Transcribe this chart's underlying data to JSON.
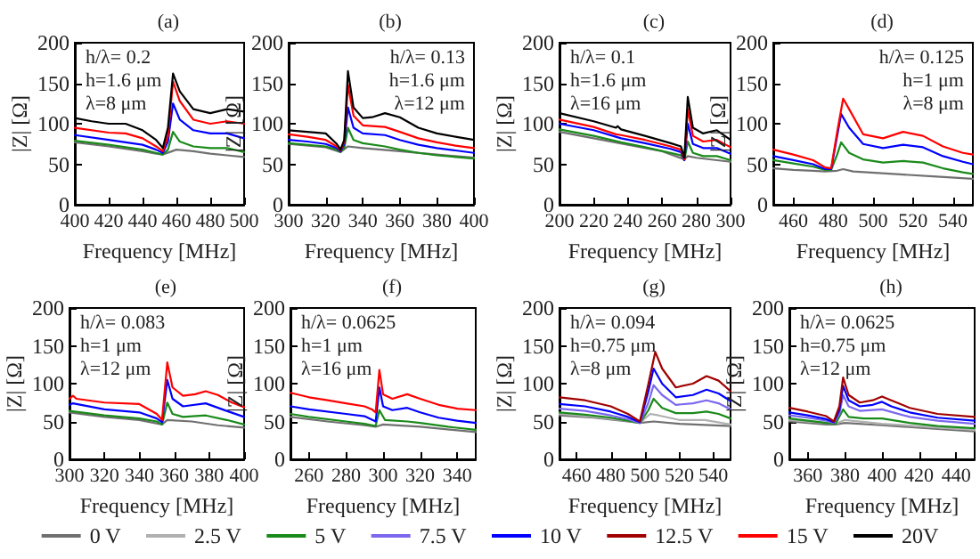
{
  "chart_data": [
    {
      "type": "line",
      "title": "(a)",
      "xlabel": "Frequency [MHz]",
      "ylabel": "|Z| [Ω]",
      "annotations": [
        "h/λ= 0.2",
        "h=1.6 μm",
        "λ=8 μm"
      ],
      "xlim": [
        400,
        500
      ],
      "xticks": [
        400,
        420,
        440,
        460,
        480,
        500
      ],
      "ylim": [
        0,
        200
      ],
      "yticks": [
        0,
        50,
        100,
        150,
        200
      ],
      "line_style": "solid",
      "series": [
        {
          "color": "#707070",
          "x": [
            400,
            420,
            440,
            448,
            452,
            456,
            460,
            470,
            480,
            490,
            500
          ],
          "values": [
            77,
            72,
            66,
            63,
            62,
            65,
            68,
            66,
            63,
            61,
            59
          ]
        },
        {
          "color": "#1a8a1a",
          "x": [
            400,
            420,
            440,
            448,
            452,
            455,
            458,
            462,
            470,
            480,
            490,
            500
          ],
          "values": [
            79,
            74,
            68,
            64,
            62,
            68,
            90,
            78,
            72,
            70,
            70,
            65
          ]
        },
        {
          "color": "#0000ff",
          "x": [
            400,
            420,
            440,
            448,
            452,
            455,
            458,
            462,
            470,
            480,
            490,
            500
          ],
          "values": [
            86,
            80,
            74,
            68,
            64,
            78,
            125,
            105,
            92,
            88,
            88,
            82
          ]
        },
        {
          "color": "#ff0000",
          "x": [
            400,
            420,
            430,
            440,
            448,
            452,
            455,
            458,
            462,
            470,
            480,
            490,
            500
          ],
          "values": [
            95,
            89,
            88,
            82,
            72,
            66,
            85,
            152,
            128,
            105,
            100,
            103,
            100
          ]
        },
        {
          "color": "#000000",
          "x": [
            400,
            410,
            420,
            430,
            440,
            448,
            452,
            455,
            458,
            462,
            470,
            480,
            490,
            500
          ],
          "values": [
            107,
            103,
            100,
            100,
            92,
            80,
            70,
            95,
            162,
            140,
            118,
            113,
            118,
            115
          ]
        }
      ]
    },
    {
      "type": "line",
      "title": "(b)",
      "xlabel": "Frequency [MHz]",
      "ylabel": "|Z| [Ω]",
      "annotations": [
        "h/λ= 0.13",
        "h=1.6 μm",
        "λ=12 μm"
      ],
      "xlim": [
        300,
        400
      ],
      "xticks": [
        300,
        320,
        340,
        360,
        380,
        400
      ],
      "ylim": [
        0,
        200
      ],
      "yticks": [
        0,
        50,
        100,
        150,
        200
      ],
      "line_style": "solid",
      "series": [
        {
          "color": "#707070",
          "x": [
            300,
            320,
            328,
            332,
            340,
            360,
            380,
            400
          ],
          "values": [
            75,
            71,
            65,
            72,
            70,
            66,
            62,
            58
          ]
        },
        {
          "color": "#1a8a1a",
          "x": [
            300,
            320,
            326,
            328,
            330,
            332,
            335,
            340,
            352,
            360,
            370,
            380,
            390,
            400
          ],
          "values": [
            76,
            72,
            68,
            65,
            70,
            95,
            80,
            76,
            72,
            68,
            64,
            61,
            59,
            57
          ]
        },
        {
          "color": "#0000ff",
          "x": [
            300,
            310,
            320,
            326,
            328,
            330,
            332,
            335,
            340,
            352,
            360,
            370,
            380,
            390,
            400
          ],
          "values": [
            80,
            78,
            75,
            70,
            66,
            75,
            120,
            95,
            88,
            86,
            80,
            74,
            70,
            67,
            64
          ]
        },
        {
          "color": "#ff0000",
          "x": [
            300,
            310,
            320,
            326,
            328,
            330,
            332,
            335,
            340,
            352,
            360,
            370,
            380,
            390,
            400
          ],
          "values": [
            87,
            84,
            80,
            72,
            67,
            78,
            148,
            110,
            98,
            96,
            90,
            82,
            77,
            73,
            70
          ]
        },
        {
          "color": "#000000",
          "x": [
            300,
            310,
            320,
            326,
            328,
            330,
            332,
            335,
            340,
            345,
            352,
            360,
            370,
            380,
            390,
            400
          ],
          "values": [
            92,
            90,
            88,
            75,
            68,
            80,
            165,
            120,
            107,
            108,
            113,
            108,
            95,
            88,
            84,
            80
          ]
        }
      ]
    },
    {
      "type": "line",
      "title": "(c)",
      "xlabel": "Frequency [MHz]",
      "ylabel": "|Z| [Ω]",
      "annotations": [
        "h/λ= 0.1",
        "h=1.6 μm",
        "λ=16 μm"
      ],
      "xlim": [
        200,
        300
      ],
      "xticks": [
        200,
        220,
        240,
        260,
        280,
        300
      ],
      "ylim": [
        0,
        200
      ],
      "yticks": [
        0,
        50,
        100,
        150,
        200
      ],
      "line_style": "solid",
      "series": [
        {
          "color": "#707070",
          "x": [
            200,
            220,
            240,
            260,
            273,
            275,
            280,
            300
          ],
          "values": [
            90,
            82,
            74,
            66,
            56,
            60,
            58,
            53
          ]
        },
        {
          "color": "#1a8a1a",
          "x": [
            200,
            220,
            236,
            250,
            265,
            271,
            273,
            275,
            278,
            284,
            292,
            300
          ],
          "values": [
            93,
            85,
            77,
            71,
            64,
            61,
            55,
            78,
            64,
            60,
            60,
            55
          ]
        },
        {
          "color": "#0000ff",
          "x": [
            200,
            220,
            236,
            250,
            265,
            271,
            273,
            275,
            278,
            284,
            292,
            300
          ],
          "values": [
            100,
            92,
            82,
            76,
            69,
            65,
            55,
            100,
            75,
            70,
            70,
            63
          ]
        },
        {
          "color": "#ff0000",
          "x": [
            200,
            220,
            233,
            236,
            250,
            265,
            271,
            273,
            275,
            278,
            284,
            292,
            300
          ],
          "values": [
            105,
            96,
            87,
            86,
            80,
            72,
            68,
            56,
            118,
            85,
            78,
            80,
            71
          ]
        },
        {
          "color": "#000000",
          "x": [
            200,
            220,
            233,
            234,
            236,
            250,
            265,
            271,
            273,
            275,
            278,
            284,
            292,
            300
          ],
          "values": [
            113,
            103,
            95,
            97,
            93,
            85,
            76,
            72,
            58,
            133,
            95,
            88,
            92,
            80
          ]
        }
      ]
    },
    {
      "type": "line",
      "title": "(d)",
      "xlabel": "Frequency [MHz]",
      "ylabel": "|Z| [Ω]",
      "annotations": [
        "h/λ= 0.125",
        "h=1 μm",
        "λ=8 μm"
      ],
      "xlim": [
        450,
        550
      ],
      "xticks": [
        460,
        480,
        500,
        520,
        540
      ],
      "ylim": [
        0,
        200
      ],
      "yticks": [
        0,
        50,
        100,
        150,
        200
      ],
      "line_style": "solid",
      "series": [
        {
          "color": "#707070",
          "x": [
            450,
            460,
            470,
            476,
            482,
            485,
            490,
            510,
            530,
            550
          ],
          "values": [
            45,
            43,
            42,
            41,
            42,
            44,
            41,
            38,
            35,
            32
          ]
        },
        {
          "color": "#1a8a1a",
          "x": [
            450,
            460,
            470,
            476,
            479,
            482,
            484,
            488,
            495,
            505,
            515,
            525,
            535,
            545,
            550
          ],
          "values": [
            55,
            51,
            47,
            43,
            43,
            62,
            77,
            64,
            56,
            52,
            54,
            52,
            45,
            40,
            38
          ]
        },
        {
          "color": "#0000ff",
          "x": [
            450,
            460,
            470,
            476,
            479,
            482,
            484,
            488,
            495,
            505,
            515,
            525,
            535,
            545,
            550
          ],
          "values": [
            60,
            55,
            50,
            44,
            44,
            85,
            112,
            95,
            75,
            70,
            74,
            71,
            60,
            53,
            50
          ]
        },
        {
          "color": "#ff0000",
          "x": [
            450,
            460,
            470,
            476,
            479,
            482,
            485,
            488,
            495,
            505,
            515,
            525,
            535,
            545,
            550
          ],
          "values": [
            68,
            62,
            55,
            46,
            45,
            90,
            131,
            118,
            87,
            82,
            90,
            85,
            72,
            64,
            62
          ]
        }
      ]
    },
    {
      "type": "line",
      "title": "(e)",
      "xlabel": "Frequency [MHz]",
      "ylabel": "|Z| [Ω]",
      "annotations": [
        "h/λ= 0.083",
        "h=1 μm",
        "λ=12 μm"
      ],
      "xlim": [
        300,
        400
      ],
      "xticks": [
        300,
        320,
        340,
        360,
        380,
        400
      ],
      "ylim": [
        0,
        200
      ],
      "yticks": [
        0,
        50,
        100,
        150,
        200
      ],
      "line_style": "solid",
      "series": [
        {
          "color": "#707070",
          "x": [
            300,
            320,
            340,
            353,
            356,
            370,
            385,
            400
          ],
          "values": [
            62,
            56,
            52,
            46,
            52,
            50,
            45,
            42
          ]
        },
        {
          "color": "#1a8a1a",
          "x": [
            300,
            320,
            340,
            350,
            353,
            356,
            359,
            365,
            378,
            390,
            400
          ],
          "values": [
            64,
            58,
            54,
            50,
            46,
            75,
            60,
            56,
            58,
            52,
            46
          ]
        },
        {
          "color": "#0000ff",
          "x": [
            300,
            302,
            320,
            340,
            350,
            353,
            356,
            359,
            365,
            378,
            390,
            400
          ],
          "values": [
            72,
            74,
            66,
            62,
            54,
            49,
            105,
            80,
            70,
            74,
            64,
            56
          ]
        },
        {
          "color": "#ff0000",
          "x": [
            300,
            302,
            304,
            320,
            340,
            350,
            353,
            356,
            359,
            365,
            372,
            378,
            385,
            393,
            400
          ],
          "values": [
            80,
            84,
            80,
            75,
            73,
            60,
            52,
            128,
            95,
            84,
            86,
            90,
            85,
            75,
            69
          ]
        }
      ]
    },
    {
      "type": "line",
      "title": "(f)",
      "xlabel": "Frequency [MHz]",
      "ylabel": "|Z| [Ω]",
      "annotations": [
        "h/λ= 0.0625",
        "h=1 μm",
        "λ=16 μm"
      ],
      "xlim": [
        250,
        350
      ],
      "xticks": [
        260,
        280,
        300,
        320,
        340
      ],
      "ylim": [
        0,
        200
      ],
      "yticks": [
        0,
        50,
        100,
        150,
        200
      ],
      "line_style": "solid",
      "series": [
        {
          "color": "#707070",
          "x": [
            250,
            270,
            290,
            296,
            300,
            320,
            350
          ],
          "values": [
            56,
            50,
            45,
            43,
            46,
            43,
            36
          ]
        },
        {
          "color": "#1a8a1a",
          "x": [
            250,
            260,
            280,
            290,
            296,
            298,
            301,
            313,
            320,
            335,
            350
          ],
          "values": [
            60,
            56,
            50,
            47,
            44,
            65,
            52,
            50,
            48,
            43,
            39
          ]
        },
        {
          "color": "#0000ff",
          "x": [
            250,
            260,
            280,
            290,
            296,
            298,
            300,
            305,
            313,
            320,
            330,
            340,
            350
          ],
          "values": [
            70,
            66,
            60,
            57,
            50,
            95,
            70,
            65,
            68,
            62,
            55,
            51,
            48
          ]
        },
        {
          "color": "#ff0000",
          "x": [
            250,
            260,
            270,
            280,
            290,
            294,
            296,
            298,
            300,
            305,
            313,
            320,
            330,
            340,
            350
          ],
          "values": [
            88,
            82,
            78,
            74,
            70,
            66,
            62,
            118,
            86,
            80,
            86,
            80,
            72,
            67,
            65
          ]
        }
      ]
    },
    {
      "type": "line",
      "title": "(g)",
      "xlabel": "Frequency [MHz]",
      "ylabel": "|Z| [Ω]",
      "annotations": [
        "h/λ= 0.094",
        "h=0.75 μm",
        "λ=8 μm"
      ],
      "xlim": [
        450,
        550
      ],
      "xticks": [
        460,
        480,
        500,
        520,
        540
      ],
      "ylim": [
        0,
        200
      ],
      "yticks": [
        0,
        50,
        100,
        150,
        200
      ],
      "line_style": "solid",
      "series": [
        {
          "color": "#707070",
          "x": [
            450,
            470,
            490,
            497,
            505,
            520,
            550
          ],
          "values": [
            58,
            55,
            50,
            48,
            50,
            47,
            44
          ]
        },
        {
          "color": "#b0b0b0",
          "x": [
            450,
            470,
            490,
            497,
            503,
            508,
            520,
            535,
            550
          ],
          "values": [
            60,
            56,
            51,
            48,
            60,
            58,
            52,
            52,
            46
          ]
        },
        {
          "color": "#1a8a1a",
          "x": [
            450,
            465,
            480,
            490,
            497,
            502,
            505,
            510,
            518,
            528,
            536,
            543,
            550
          ],
          "values": [
            62,
            59,
            55,
            51,
            48,
            65,
            80,
            68,
            61,
            61,
            63,
            60,
            54
          ]
        },
        {
          "color": "#7b68ee",
          "x": [
            450,
            465,
            480,
            490,
            497,
            502,
            505,
            510,
            518,
            528,
            536,
            543,
            550
          ],
          "values": [
            67,
            64,
            58,
            53,
            48,
            75,
            98,
            85,
            72,
            74,
            78,
            74,
            66
          ]
        },
        {
          "color": "#0000ff",
          "x": [
            450,
            465,
            480,
            490,
            497,
            502,
            505,
            510,
            518,
            528,
            536,
            543,
            550
          ],
          "values": [
            73,
            70,
            63,
            56,
            49,
            90,
            120,
            100,
            82,
            85,
            92,
            87,
            77
          ]
        },
        {
          "color": "#a00000",
          "x": [
            450,
            465,
            480,
            490,
            497,
            502,
            506,
            510,
            518,
            528,
            536,
            543,
            550
          ],
          "values": [
            82,
            78,
            70,
            60,
            50,
            100,
            142,
            120,
            95,
            100,
            110,
            104,
            90
          ]
        }
      ]
    },
    {
      "type": "line",
      "title": "(h)",
      "xlabel": "Frequency [MHz]",
      "ylabel": "|Z| [Ω]",
      "annotations": [
        "h/λ= 0.0625",
        "h=0.75 μm",
        "λ=12 μm"
      ],
      "xlim": [
        350,
        450
      ],
      "xticks": [
        360,
        380,
        400,
        420,
        440
      ],
      "ylim": [
        0,
        200
      ],
      "yticks": [
        0,
        50,
        100,
        150,
        200
      ],
      "line_style": "solid",
      "legend": "bottom",
      "series": [
        {
          "name": "0 V",
          "color": "#707070",
          "x": [
            350,
            370,
            375,
            380,
            400,
            430,
            450
          ],
          "values": [
            50,
            46,
            46,
            48,
            45,
            40,
            37
          ]
        },
        {
          "name": "2.5 V",
          "color": "#b0b0b0",
          "x": [
            350,
            370,
            375,
            380,
            400,
            430,
            450
          ],
          "values": [
            52,
            48,
            47,
            52,
            47,
            42,
            39
          ]
        },
        {
          "name": "5 V",
          "color": "#1a8a1a",
          "x": [
            350,
            360,
            370,
            375,
            379,
            382,
            390,
            400,
            415,
            430,
            450
          ],
          "values": [
            54,
            51,
            48,
            47,
            66,
            56,
            54,
            54,
            48,
            44,
            41
          ]
        },
        {
          "name": "7.5 V",
          "color": "#7b68ee",
          "x": [
            350,
            360,
            370,
            374,
            377,
            379,
            382,
            388,
            400,
            415,
            430,
            450
          ],
          "values": [
            58,
            55,
            51,
            48,
            60,
            85,
            70,
            64,
            66,
            56,
            51,
            47
          ]
        },
        {
          "name": "10 V",
          "color": "#0000ff",
          "x": [
            350,
            360,
            370,
            374,
            377,
            379,
            382,
            388,
            395,
            400,
            405,
            415,
            430,
            450
          ],
          "values": [
            62,
            58,
            53,
            49,
            65,
            97,
            78,
            70,
            72,
            76,
            70,
            62,
            55,
            51
          ]
        },
        {
          "name": "12.5 V",
          "color": "#a00000",
          "x": [
            350,
            360,
            370,
            374,
            377,
            379,
            382,
            388,
            395,
            400,
            405,
            415,
            430,
            450
          ],
          "values": [
            68,
            63,
            57,
            50,
            70,
            108,
            85,
            75,
            78,
            83,
            78,
            68,
            60,
            56
          ]
        },
        {
          "name": "15 V",
          "color": "#ff0000"
        },
        {
          "name": "20V",
          "color": "#000000"
        }
      ]
    }
  ]
}
